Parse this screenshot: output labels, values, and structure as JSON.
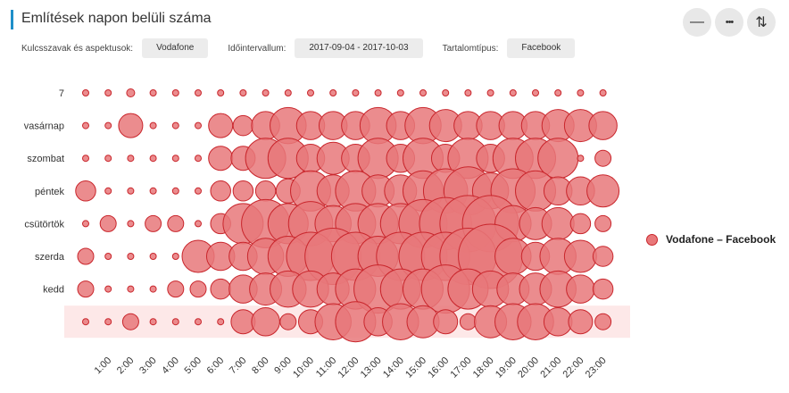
{
  "header": {
    "title": "Említések napon belüli száma",
    "buttons": [
      "—",
      "•••",
      "⇅"
    ]
  },
  "filters": [
    {
      "label": "Kulcsszavak és aspektusok:",
      "value": "Vodafone"
    },
    {
      "label": "Időintervallum:",
      "value": "2017-09-04 - 2017-10-03"
    },
    {
      "label": "Tartalomtípus:",
      "value": "Facebook"
    }
  ],
  "colors": {
    "bubble_fill": "#e8787a",
    "bubble_stroke": "#c9262c",
    "highlight_band": "#fde8e8",
    "accent": "#1f8fc9"
  },
  "chart_data": {
    "type": "bubble",
    "y_labels": [
      "7",
      "vasárnap",
      "szombat",
      "péntek",
      "csütörtök",
      "szerda",
      "kedd",
      ""
    ],
    "x_labels": [
      "1:00",
      "2:00",
      "3:00",
      "4:00",
      "5:00",
      "6:00",
      "7:00",
      "8:00",
      "9:00",
      "10:00",
      "11:00",
      "12:00",
      "13:00",
      "14:00",
      "15:00",
      "16:00",
      "17:00",
      "18:00",
      "19:00",
      "20:00",
      "21:00",
      "22:00",
      "23:00"
    ],
    "highlighted_row": 7,
    "series": [
      {
        "name": "Vodafone – Facebook",
        "rows": [
          [
            1,
            1,
            2,
            1,
            1,
            1,
            1,
            1,
            1,
            1,
            1,
            1,
            1,
            1,
            1,
            1,
            1,
            1,
            1,
            1,
            1,
            1,
            1,
            1
          ],
          [
            1,
            1,
            6,
            1,
            1,
            1,
            6,
            5,
            7,
            9,
            7,
            7,
            7,
            9,
            7,
            9,
            8,
            7,
            7,
            7,
            7,
            8,
            8,
            7
          ],
          [
            1,
            1,
            1,
            1,
            1,
            1,
            6,
            6,
            10,
            10,
            7,
            8,
            7,
            10,
            7,
            10,
            7,
            10,
            7,
            10,
            10,
            10,
            1,
            4
          ],
          [
            5,
            1,
            1,
            1,
            1,
            1,
            5,
            5,
            5,
            6,
            10,
            8,
            10,
            8,
            8,
            10,
            11,
            12,
            9,
            11,
            10,
            7,
            7,
            8
          ],
          [
            1,
            4,
            1,
            4,
            4,
            1,
            5,
            10,
            12,
            10,
            11,
            9,
            10,
            10,
            10,
            12,
            13,
            14,
            14,
            9,
            8,
            8,
            5,
            4
          ],
          [
            4,
            1,
            1,
            1,
            1,
            8,
            7,
            7,
            9,
            10,
            12,
            14,
            12,
            10,
            12,
            12,
            12,
            14,
            16,
            9,
            7,
            9,
            8,
            5
          ],
          [
            4,
            1,
            1,
            1,
            4,
            4,
            5,
            7,
            8,
            9,
            9,
            8,
            10,
            12,
            10,
            10,
            12,
            10,
            9,
            8,
            8,
            9,
            7,
            5
          ],
          [
            1,
            1,
            4,
            1,
            1,
            1,
            1,
            6,
            7,
            4,
            6,
            9,
            10,
            7,
            9,
            8,
            6,
            4,
            8,
            9,
            9,
            7,
            6,
            4
          ]
        ]
      }
    ]
  }
}
